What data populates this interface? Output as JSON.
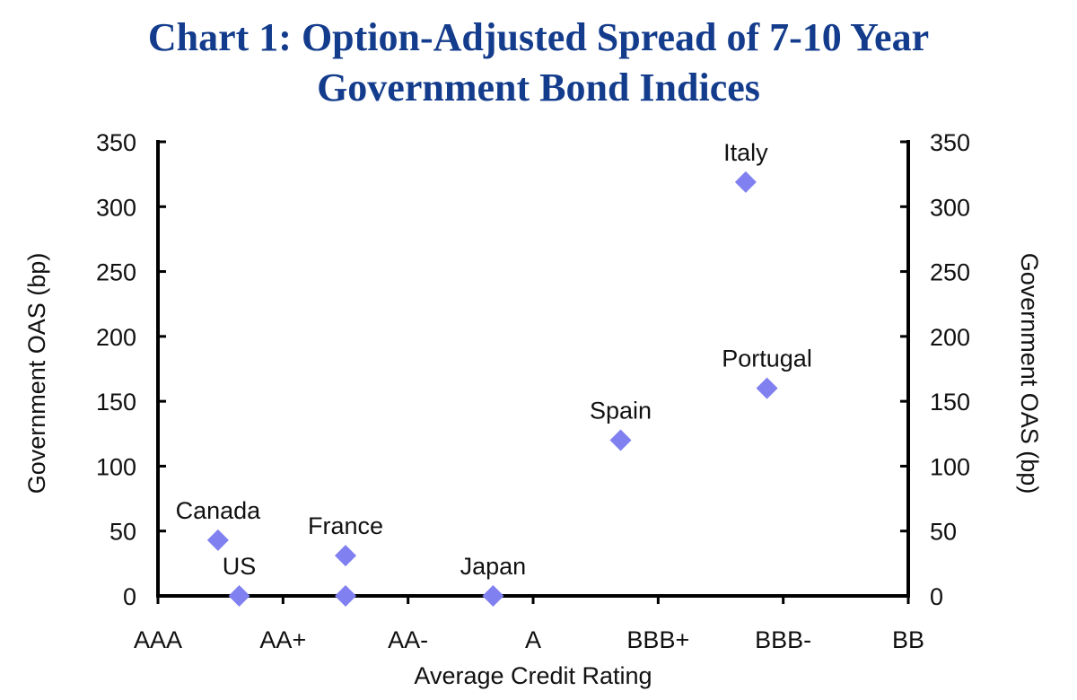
{
  "chart_data": {
    "type": "scatter",
    "title_line1": "Chart 1: Option-Adjusted Spread of 7-10 Year",
    "title_line2": "Government Bond Indices",
    "xlabel": "Average Credit Rating",
    "ylabel_left": "Government OAS (bp)",
    "ylabel_right": "Government OAS (bp)",
    "x_categories": [
      "AAA",
      "AA+",
      "AA-",
      "A",
      "BBB+",
      "BBB-",
      "BB"
    ],
    "x_range": [
      0,
      6
    ],
    "ylim": [
      0,
      350
    ],
    "y_ticks": [
      0,
      50,
      100,
      150,
      200,
      250,
      300,
      350
    ],
    "y_tick_labels": [
      "0",
      "50",
      "100",
      "150",
      "200",
      "250",
      "300",
      "350"
    ],
    "grid": false,
    "marker": "diamond",
    "marker_color": "#8080f0",
    "points": [
      {
        "label": "Canada",
        "x": 0.48,
        "y": 43
      },
      {
        "label": "US",
        "x": 0.65,
        "y": 0
      },
      {
        "label": "France",
        "x": 1.5,
        "y": 31
      },
      {
        "label": "",
        "x": 1.5,
        "y": 0
      },
      {
        "label": "Japan",
        "x": 2.68,
        "y": 0
      },
      {
        "label": "Spain",
        "x": 3.7,
        "y": 120
      },
      {
        "label": "Italy",
        "x": 4.7,
        "y": 319
      },
      {
        "label": "Portugal",
        "x": 4.87,
        "y": 160
      }
    ]
  }
}
